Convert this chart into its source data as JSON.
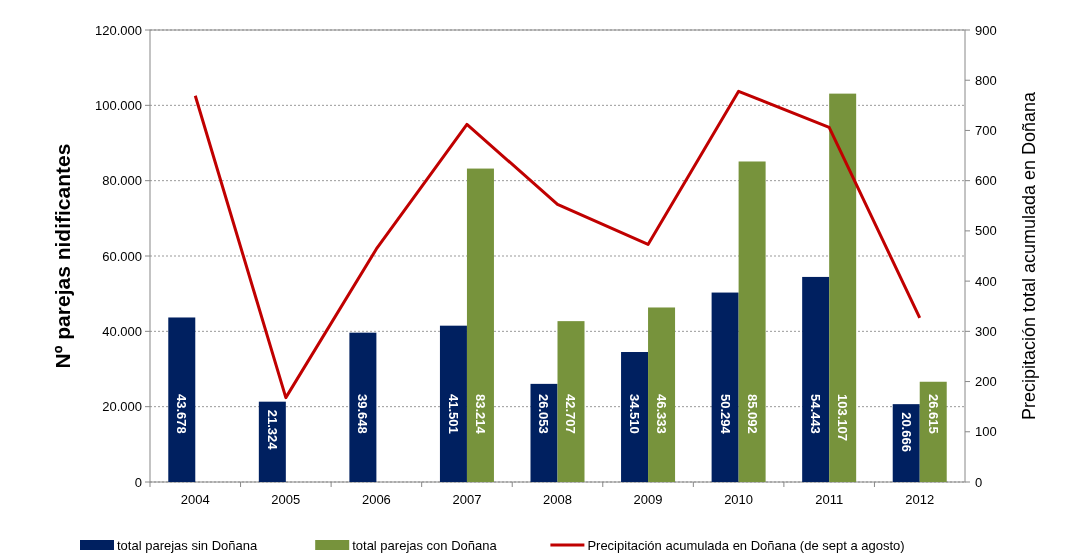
{
  "chart_data": {
    "type": "bar",
    "ylabel": "Nº parejas nidificantes",
    "y2label": "Precipitación total acumulada en Doñana",
    "categories": [
      "2004",
      "2005",
      "2006",
      "2007",
      "2008",
      "2009",
      "2010",
      "2011",
      "2012"
    ],
    "series": [
      {
        "name": "total parejas sin Doñana",
        "color": "#002060",
        "values": [
          43678,
          21324,
          39648,
          41501,
          26053,
          34510,
          50294,
          54443,
          20666
        ],
        "value_labels": [
          "43.678",
          "21.324",
          "39.648",
          "41.501",
          "26.053",
          "34.510",
          "50.294",
          "54.443",
          "20.666"
        ]
      },
      {
        "name": "total parejas con Doñana",
        "color": "#77933c",
        "values": [
          null,
          null,
          null,
          83214,
          42707,
          46333,
          85092,
          103107,
          26615
        ],
        "value_labels": [
          null,
          null,
          null,
          "83.214",
          "42.707",
          "46.333",
          "85.092",
          "103.107",
          "26.615"
        ]
      },
      {
        "name": "Precipitación acumulada en Doñana (de sept a agosto)",
        "type": "line",
        "axis": "y2",
        "color": "#c00000",
        "values": [
          769,
          168,
          464,
          712,
          553,
          473,
          778,
          706,
          327
        ]
      }
    ],
    "ylim": [
      0,
      120000
    ],
    "yticks": [
      {
        "value": 0,
        "label": "0"
      },
      {
        "value": 20000,
        "label": "20.000"
      },
      {
        "value": 40000,
        "label": "40.000"
      },
      {
        "value": 60000,
        "label": "60.000"
      },
      {
        "value": 80000,
        "label": "80.000"
      },
      {
        "value": 100000,
        "label": "100.000"
      },
      {
        "value": 120000,
        "label": "120.000"
      }
    ],
    "y2lim": [
      0,
      900
    ],
    "y2ticks": [
      0,
      100,
      200,
      300,
      400,
      500,
      600,
      700,
      800,
      900
    ],
    "grid": "y",
    "legend": "bottom",
    "marker": "none",
    "line_style": "solid"
  }
}
